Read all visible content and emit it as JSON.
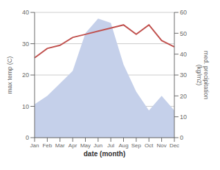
{
  "chart_data": {
    "type": "line",
    "categories": [
      "Jan",
      "Feb",
      "Mar",
      "Apr",
      "May",
      "Jun",
      "Jul",
      "Aug",
      "Sep",
      "Oct",
      "Nov",
      "Dec"
    ],
    "xlabel": "date (month)",
    "ylabel": "max temp (C)",
    "y2label": "med. precipitation\n(kg/m2)",
    "series": [
      {
        "type": "area",
        "axis": "y2",
        "color": "#c5d0ea",
        "values": [
          16,
          20,
          26,
          32,
          50,
          57,
          55,
          35,
          22,
          13,
          20,
          13
        ]
      },
      {
        "type": "line",
        "color": "#c0504d",
        "values": [
          25.5,
          28.5,
          29.5,
          32,
          33,
          34,
          35,
          36,
          33,
          36,
          31,
          29
        ]
      }
    ],
    "ylim": [
      0,
      40
    ],
    "yticks": [
      0,
      10,
      20,
      30,
      40
    ],
    "y2lim": [
      0,
      60
    ],
    "y2ticks": [
      0,
      10,
      20,
      30,
      40,
      50,
      60
    ],
    "grid": true
  }
}
